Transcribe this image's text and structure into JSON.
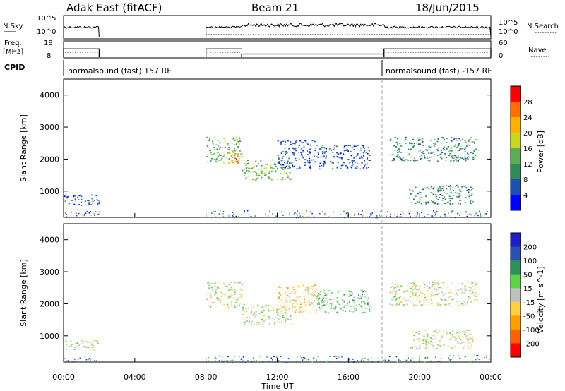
{
  "header": {
    "title": "Adak East (fitACF)",
    "beam": "Beam 21",
    "date": "18/Jun/2015"
  },
  "colors": {
    "power_scale": [
      "#0000ff",
      "#1f4fb0",
      "#2e8b57",
      "#5faa55",
      "#c8d820",
      "#ffb000",
      "#ff7000",
      "#ff0000"
    ],
    "velocity_scale": [
      "#1e1ec8",
      "#2a50b4",
      "#2f8f5a",
      "#5dd24a",
      "#c0c0c0",
      "#ffd040",
      "#ffa000",
      "#ff6000",
      "#ff0000"
    ]
  },
  "left_labels": {
    "nsky": "N.Sky",
    "freq_line1": "Freq.",
    "freq_line2": "[MHz]",
    "cpid": "CPID"
  },
  "right_labels": {
    "nsearch": "N.Search",
    "nave": "Nave"
  },
  "cpid_text": {
    "first": "normalsound (fast) 157 RF",
    "second": "normalsound (fast) -157 RF"
  },
  "chart_data": [
    {
      "type": "line",
      "name": "noise",
      "ylabel": "N.Sky",
      "y_tick_labels": [
        "10^5",
        "10^0"
      ],
      "right_tick_labels": [
        "10^5",
        "10^0"
      ],
      "x_hours": [
        0,
        2,
        8,
        10,
        14,
        18,
        24
      ],
      "nsky_on_segments": [
        [
          0,
          2
        ],
        [
          8,
          24
        ]
      ]
    },
    {
      "type": "line",
      "name": "frequency",
      "ylabel": "Freq. [MHz]",
      "left_ticks": [
        8,
        18
      ],
      "right_ticks": [
        0,
        60
      ],
      "segments": [
        {
          "start": 0,
          "end": 2,
          "freq_mhz": 14.5
        },
        {
          "start": 8,
          "end": 10,
          "freq_mhz": 14.5
        },
        {
          "start": 10,
          "end": 18,
          "freq_mhz": 10.5
        },
        {
          "start": 18,
          "end": 24,
          "freq_mhz": 14.5
        }
      ]
    },
    {
      "type": "heatmap",
      "name": "power",
      "ylabel": "Slant Range [km]",
      "ylim": [
        180,
        4500
      ],
      "y_ticks": [
        1000,
        2000,
        3000,
        4000
      ],
      "colorbar_label": "Power [dB]",
      "colorbar_ticks": [
        "4",
        "8",
        "12",
        "16",
        "20",
        "24",
        "28"
      ],
      "echo_regions": [
        {
          "t0": 0.0,
          "t1": 2.0,
          "r0": 550,
          "r1": 900,
          "level": 1
        },
        {
          "t0": 8.0,
          "t1": 10.0,
          "r0": 1900,
          "r1": 2700,
          "level": 3
        },
        {
          "t0": 9.2,
          "t1": 10.0,
          "r0": 1850,
          "r1": 2200,
          "level": 6
        },
        {
          "t0": 10.0,
          "t1": 12.8,
          "r0": 1350,
          "r1": 2000,
          "level": 3
        },
        {
          "t0": 12.0,
          "t1": 14.2,
          "r0": 1700,
          "r1": 2600,
          "level": 1
        },
        {
          "t0": 14.2,
          "t1": 17.2,
          "r0": 1700,
          "r1": 2450,
          "level": 1
        },
        {
          "t0": 18.3,
          "t1": 23.2,
          "r0": 1950,
          "r1": 2700,
          "level": 2
        },
        {
          "t0": 19.4,
          "t1": 23.0,
          "r0": 600,
          "r1": 1200,
          "level": 2
        }
      ]
    },
    {
      "type": "heatmap",
      "name": "velocity",
      "xlabel": "Time UT",
      "ylabel": "Slant Range [km]",
      "ylim": [
        180,
        4500
      ],
      "y_ticks": [
        1000,
        2000,
        3000,
        4000
      ],
      "colorbar_label": "Velocity [m s^-1]",
      "colorbar_ticks": [
        "200",
        "100",
        "50",
        "15",
        "-15",
        "-50",
        "-100",
        "-200"
      ],
      "x_tick_labels": [
        "00:00",
        "04:00",
        "08:00",
        "12:00",
        "16:00",
        "20:00",
        "00:00"
      ],
      "echo_regions": [
        {
          "t0": 0.0,
          "t1": 2.0,
          "r0": 550,
          "r1": 900,
          "level": 4
        },
        {
          "t0": 8.0,
          "t1": 10.0,
          "r0": 1900,
          "r1": 2700,
          "level": 4
        },
        {
          "t0": 10.0,
          "t1": 12.8,
          "r0": 1350,
          "r1": 2000,
          "level": 4
        },
        {
          "t0": 12.0,
          "t1": 14.2,
          "r0": 1700,
          "r1": 2600,
          "level": 5
        },
        {
          "t0": 14.2,
          "t1": 17.2,
          "r0": 1700,
          "r1": 2450,
          "level": 3
        },
        {
          "t0": 18.3,
          "t1": 23.2,
          "r0": 1950,
          "r1": 2700,
          "level": 4
        },
        {
          "t0": 19.4,
          "t1": 23.0,
          "r0": 600,
          "r1": 1200,
          "level": 4
        }
      ]
    }
  ]
}
